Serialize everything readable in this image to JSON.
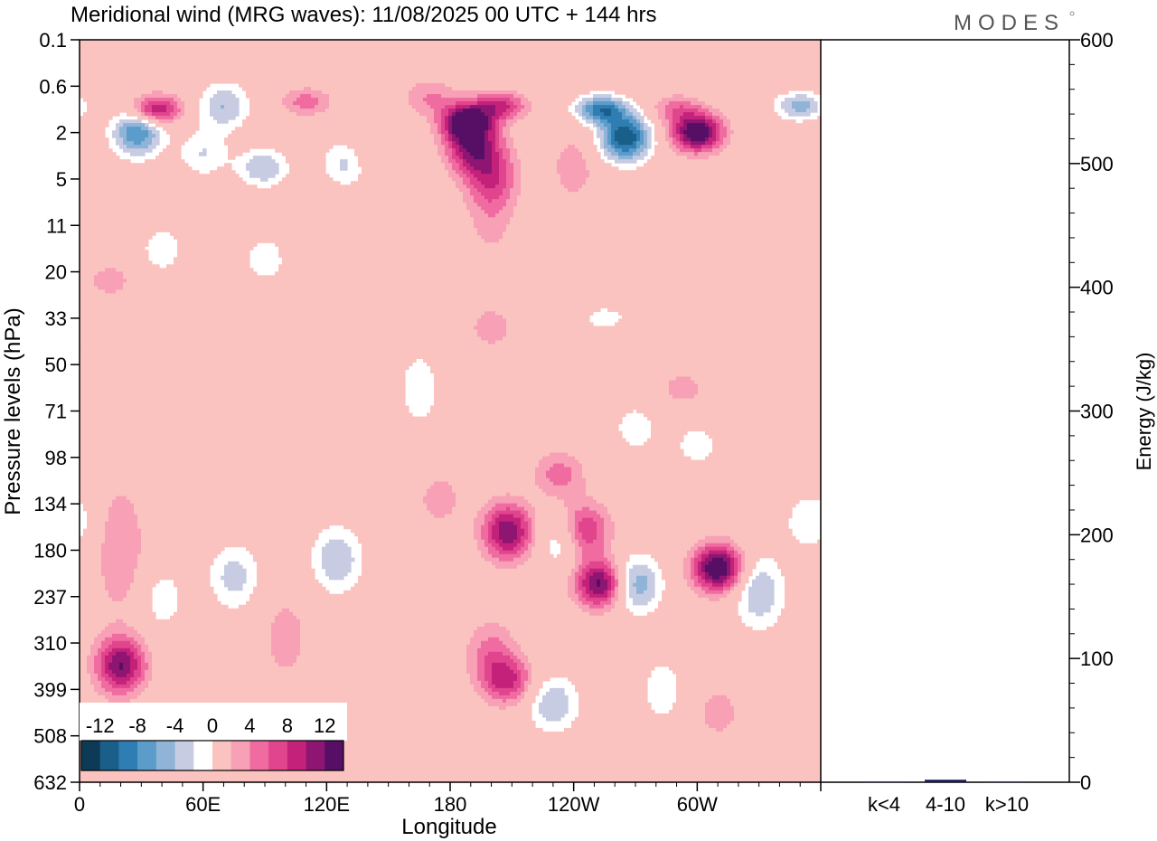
{
  "title": "Meridional wind (MRG waves):  11/08/2025  00 UTC  + 144 hrs",
  "logo": "MODES",
  "chart_data": {
    "type": "heatmap",
    "title": "Meridional wind (MRG waves):  11/08/2025  00 UTC  + 144 hrs",
    "xlabel": "Longitude",
    "ylabel": "Pressure levels (hPa)",
    "xticks": [
      "0",
      "60E",
      "120E",
      "180",
      "120W",
      "60W"
    ],
    "yticks": [
      "0.1",
      "0.6",
      "2",
      "5",
      "11",
      "20",
      "33",
      "50",
      "71",
      "98",
      "134",
      "180",
      "237",
      "310",
      "399",
      "508",
      "632"
    ],
    "colorbar": {
      "labels": [
        "-12",
        "-8",
        "-4",
        "0",
        "4",
        "8",
        "12"
      ],
      "levels": [
        -14,
        -12,
        -10,
        -8,
        -6,
        -4,
        -2,
        2,
        4,
        6,
        8,
        10,
        12,
        14
      ],
      "colors": [
        "#0d3b57",
        "#1a5f8a",
        "#2e7db3",
        "#5b9ccb",
        "#8fb4d8",
        "#c8cce3",
        "#ffffff",
        "#fbc3c0",
        "#f7a0b6",
        "#f06ca0",
        "#e0458d",
        "#c4227a",
        "#8e1672",
        "#560f65"
      ]
    },
    "blobs": [
      {
        "lon": 37,
        "lev": 1.1,
        "w": 0.3,
        "value": 11
      },
      {
        "lon": 70,
        "lev": 1.0,
        "w": 0.5,
        "value": -6
      },
      {
        "lon": 110,
        "lev": 0.9,
        "w": 0.3,
        "value": 5
      },
      {
        "lon": 170,
        "lev": 0.8,
        "w": 0.4,
        "value": 4
      },
      {
        "lon": 205,
        "lev": 1.0,
        "w": 0.3,
        "value": 8
      },
      {
        "lon": 253,
        "lev": 1.1,
        "w": 0.3,
        "value": -11
      },
      {
        "lon": 290,
        "lev": 1.1,
        "w": 0.3,
        "value": 5
      },
      {
        "lon": 350,
        "lev": 1.0,
        "w": 0.3,
        "value": -7
      },
      {
        "lon": 28,
        "lev": 2.0,
        "w": 0.5,
        "value": -10
      },
      {
        "lon": 60,
        "lev": 3.0,
        "w": 0.5,
        "value": -4
      },
      {
        "lon": 89,
        "lev": 4.0,
        "w": 0.4,
        "value": -6
      },
      {
        "lon": 130,
        "lev": 3.6,
        "w": 0.5,
        "value": -5
      },
      {
        "lon": 188,
        "lev": 1.5,
        "w": 0.4,
        "value": 13
      },
      {
        "lon": 190,
        "lev": 2.6,
        "w": 0.6,
        "value": 10
      },
      {
        "lon": 200,
        "lev": 4.5,
        "w": 0.7,
        "value": 6
      },
      {
        "lon": 200,
        "lev": 8.0,
        "w": 1.2,
        "value": 3
      },
      {
        "lon": 142,
        "lev": 3.0,
        "w": 0.5,
        "value": 3
      },
      {
        "lon": 265,
        "lev": 2.2,
        "w": 0.5,
        "value": -14
      },
      {
        "lon": 300,
        "lev": 2.0,
        "w": 0.4,
        "value": 15
      },
      {
        "lon": 240,
        "lev": 4.0,
        "w": 0.8,
        "value": 3
      },
      {
        "lon": 40,
        "lev": 15.0,
        "w": 0.6,
        "value": -3
      },
      {
        "lon": 90,
        "lev": 17.0,
        "w": 0.6,
        "value": -3
      },
      {
        "lon": 15,
        "lev": 22.0,
        "w": 0.4,
        "value": 3
      },
      {
        "lon": 200,
        "lev": 36.0,
        "w": 0.5,
        "value": 3
      },
      {
        "lon": 255,
        "lev": 33.0,
        "w": 0.3,
        "value": -3
      },
      {
        "lon": 165,
        "lev": 60.0,
        "w": 1.0,
        "value": -3
      },
      {
        "lon": 270,
        "lev": 80.0,
        "w": 0.6,
        "value": -3
      },
      {
        "lon": 293,
        "lev": 60.0,
        "w": 0.4,
        "value": 3
      },
      {
        "lon": 20,
        "lev": 350.0,
        "w": 0.6,
        "value": 12
      },
      {
        "lon": 20,
        "lev": 180.0,
        "w": 1.4,
        "value": 4
      },
      {
        "lon": 40,
        "lev": 240.0,
        "w": 0.8,
        "value": -3
      },
      {
        "lon": 75,
        "lev": 210.0,
        "w": 0.7,
        "value": -5
      },
      {
        "lon": 100,
        "lev": 300.0,
        "w": 1.0,
        "value": 3
      },
      {
        "lon": 125,
        "lev": 190.0,
        "w": 0.7,
        "value": -6
      },
      {
        "lon": 175,
        "lev": 130.0,
        "w": 0.6,
        "value": 3
      },
      {
        "lon": 208,
        "lev": 160.0,
        "w": 0.6,
        "value": 12
      },
      {
        "lon": 235,
        "lev": 170.0,
        "w": 0.6,
        "value": -5
      },
      {
        "lon": 208,
        "lev": 380.0,
        "w": 0.5,
        "value": 8
      },
      {
        "lon": 200,
        "lev": 330.0,
        "w": 0.7,
        "value": 5
      },
      {
        "lon": 233,
        "lev": 110.0,
        "w": 0.5,
        "value": 5
      },
      {
        "lon": 245,
        "lev": 160.0,
        "w": 0.6,
        "value": 9
      },
      {
        "lon": 253,
        "lev": 220.0,
        "w": 0.5,
        "value": 13
      },
      {
        "lon": 230,
        "lev": 430.0,
        "w": 0.6,
        "value": -6
      },
      {
        "lon": 270,
        "lev": 220.0,
        "w": 0.6,
        "value": -8
      },
      {
        "lon": 283,
        "lev": 400.0,
        "w": 0.8,
        "value": -3
      },
      {
        "lon": 310,
        "lev": 200.0,
        "w": 0.5,
        "value": 15
      },
      {
        "lon": 330,
        "lev": 230.0,
        "w": 0.8,
        "value": -6
      },
      {
        "lon": 355,
        "lev": 150.0,
        "w": 0.6,
        "value": -4
      },
      {
        "lon": 310,
        "lev": 450.0,
        "w": 0.6,
        "value": 3
      },
      {
        "lon": 300,
        "lev": 90.0,
        "w": 0.5,
        "value": -3
      }
    ]
  },
  "energy": {
    "ylabel": "Energy (J/kg)",
    "yticks": [
      0,
      100,
      200,
      300,
      400,
      500,
      600
    ],
    "ylim": [
      0,
      600
    ],
    "categories": [
      "k<4",
      "4-10",
      "k>10"
    ],
    "values": [
      0.5,
      2.0,
      0.5
    ],
    "bar_color": "#1a1a5a"
  }
}
